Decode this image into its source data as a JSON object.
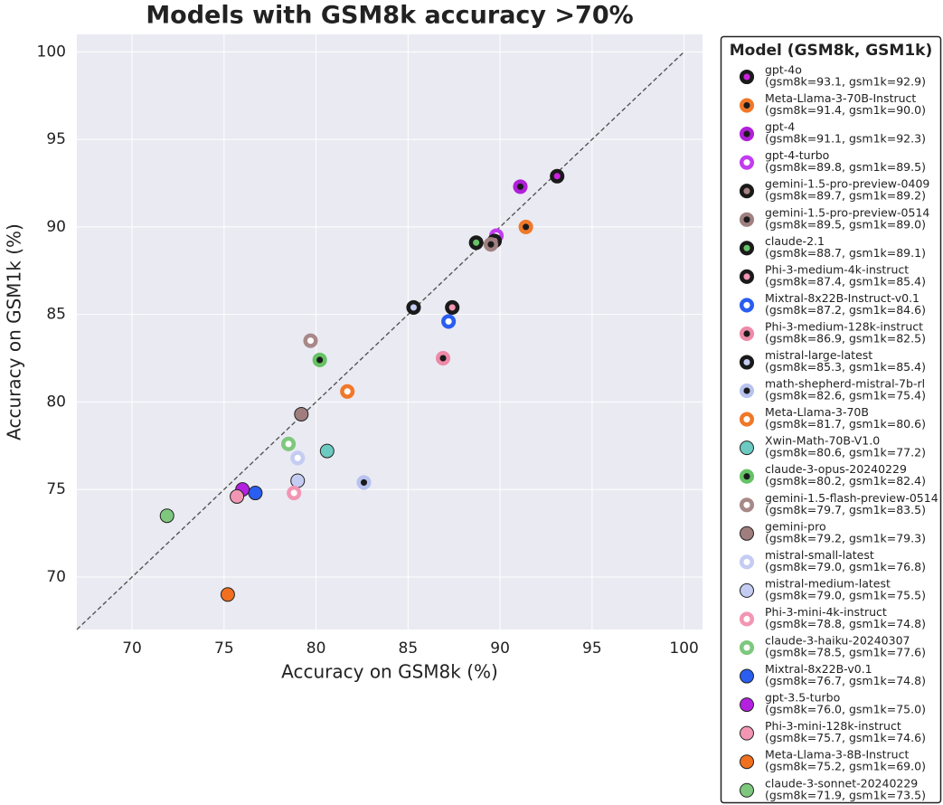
{
  "chart_data": {
    "type": "scatter",
    "title": "Models with GSM8k accuracy >70%",
    "x_label": "Accuracy on GSM8k (%)",
    "y_label": "Accuracy on GSM1k (%)",
    "legend_title": "Model (GSM8k, GSM1k)",
    "legend_position": "outside-right",
    "grid": true,
    "xlim": [
      67,
      101
    ],
    "ylim": [
      67,
      101
    ],
    "xticks": [
      70,
      75,
      80,
      85,
      90,
      95,
      100
    ],
    "yticks": [
      70,
      75,
      80,
      85,
      90,
      95,
      100
    ],
    "series": [
      {
        "name": "gpt-4o",
        "detail": "(gsm8k=93.1, gsm1k=92.9)",
        "color": "#cc22e0",
        "marker": "dot",
        "x": 93.1,
        "y": 92.9
      },
      {
        "name": "Meta-Llama-3-70B-Instruct",
        "detail": "(gsm8k=91.4, gsm1k=90.0)",
        "color": "#f07828",
        "marker": "ring",
        "x": 91.4,
        "y": 90.0
      },
      {
        "name": "gpt-4",
        "detail": "(gsm8k=91.1, gsm1k=92.3)",
        "color": "#b020d8",
        "marker": "ring",
        "x": 91.1,
        "y": 92.3
      },
      {
        "name": "gpt-4-turbo",
        "detail": "(gsm8k=89.8, gsm1k=89.5)",
        "color": "#c23cf0",
        "marker": "hollow",
        "x": 89.8,
        "y": 89.5
      },
      {
        "name": "gemini-1.5-pro-preview-0409",
        "detail": "(gsm8k=89.7, gsm1k=89.2)",
        "color": "#a88484",
        "marker": "dot",
        "x": 89.7,
        "y": 89.2
      },
      {
        "name": "gemini-1.5-pro-preview-0514",
        "detail": "(gsm8k=89.5, gsm1k=89.0)",
        "color": "#a08080",
        "marker": "ring",
        "x": 89.5,
        "y": 89.0
      },
      {
        "name": "claude-2.1",
        "detail": "(gsm8k=88.7, gsm1k=89.1)",
        "color": "#66c266",
        "marker": "dot",
        "x": 88.7,
        "y": 89.1
      },
      {
        "name": "Phi-3-medium-4k-instruct",
        "detail": "(gsm8k=87.4, gsm1k=85.4)",
        "color": "#f296b4",
        "marker": "dot",
        "x": 87.4,
        "y": 85.4
      },
      {
        "name": "Mixtral-8x22B-Instruct-v0.1",
        "detail": "(gsm8k=87.2, gsm1k=84.6)",
        "color": "#2a5ef0",
        "marker": "hollow",
        "x": 87.2,
        "y": 84.6
      },
      {
        "name": "Phi-3-medium-128k-instruct",
        "detail": "(gsm8k=86.9, gsm1k=82.5)",
        "color": "#ee8aa8",
        "marker": "ring",
        "x": 86.9,
        "y": 82.5
      },
      {
        "name": "mistral-large-latest",
        "detail": "(gsm8k=85.3, gsm1k=85.4)",
        "color": "#c4ccf2",
        "marker": "dot",
        "x": 85.3,
        "y": 85.4
      },
      {
        "name": "math-shepherd-mistral-7b-rl",
        "detail": "(gsm8k=82.6, gsm1k=75.4)",
        "color": "#b8c2ee",
        "marker": "ring",
        "x": 82.6,
        "y": 75.4
      },
      {
        "name": "Meta-Llama-3-70B",
        "detail": "(gsm8k=81.7, gsm1k=80.6)",
        "color": "#f07828",
        "marker": "hollow",
        "x": 81.7,
        "y": 80.6
      },
      {
        "name": "Xwin-Math-70B-V1.0",
        "detail": "(gsm8k=80.6, gsm1k=77.2)",
        "color": "#6ccac2",
        "marker": "filled",
        "x": 80.6,
        "y": 77.2
      },
      {
        "name": "claude-3-opus-20240229",
        "detail": "(gsm8k=80.2, gsm1k=82.4)",
        "color": "#66c266",
        "marker": "ring",
        "x": 80.2,
        "y": 82.4
      },
      {
        "name": "gemini-1.5-flash-preview-0514",
        "detail": "(gsm8k=79.7, gsm1k=83.5)",
        "color": "#a88888",
        "marker": "hollow",
        "x": 79.7,
        "y": 83.5
      },
      {
        "name": "gemini-pro",
        "detail": "(gsm8k=79.2, gsm1k=79.3)",
        "color": "#a07e7e",
        "marker": "filled",
        "x": 79.2,
        "y": 79.3
      },
      {
        "name": "mistral-small-latest",
        "detail": "(gsm8k=79.0, gsm1k=76.8)",
        "color": "#c4ccf2",
        "marker": "hollow",
        "x": 79.0,
        "y": 76.8
      },
      {
        "name": "mistral-medium-latest",
        "detail": "(gsm8k=79.0, gsm1k=75.5)",
        "color": "#c4ccf2",
        "marker": "filled",
        "x": 79.0,
        "y": 75.5
      },
      {
        "name": "Phi-3-mini-4k-instruct",
        "detail": "(gsm8k=78.8, gsm1k=74.8)",
        "color": "#f296b4",
        "marker": "hollow",
        "x": 78.8,
        "y": 74.8
      },
      {
        "name": "claude-3-haiku-20240307",
        "detail": "(gsm8k=78.5, gsm1k=77.6)",
        "color": "#7ec87e",
        "marker": "hollow",
        "x": 78.5,
        "y": 77.6
      },
      {
        "name": "Mixtral-8x22B-v0.1",
        "detail": "(gsm8k=76.7, gsm1k=74.8)",
        "color": "#2a5ef0",
        "marker": "filled",
        "x": 76.7,
        "y": 74.8
      },
      {
        "name": "gpt-3.5-turbo",
        "detail": "(gsm8k=76.0, gsm1k=75.0)",
        "color": "#b420e0",
        "marker": "filled",
        "x": 76.0,
        "y": 75.0
      },
      {
        "name": "Phi-3-mini-128k-instruct",
        "detail": "(gsm8k=75.7, gsm1k=74.6)",
        "color": "#f296b4",
        "marker": "filled",
        "x": 75.7,
        "y": 74.6
      },
      {
        "name": "Meta-Llama-3-8B-Instruct",
        "detail": "(gsm8k=75.2, gsm1k=69.0)",
        "color": "#f07020",
        "marker": "filled",
        "x": 75.2,
        "y": 69.0
      },
      {
        "name": "claude-3-sonnet-20240229",
        "detail": "(gsm8k=71.9, gsm1k=73.5)",
        "color": "#7ec87e",
        "marker": "filled",
        "x": 71.9,
        "y": 73.5
      }
    ]
  }
}
